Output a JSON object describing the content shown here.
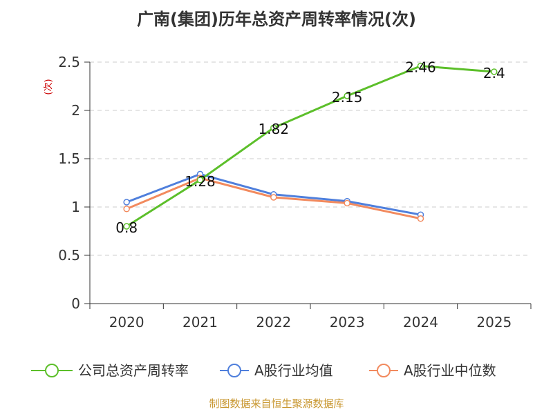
{
  "chart_data": {
    "type": "line",
    "title": "广南(集团)历年总资产周转率情况(次)",
    "ylabel": "(次)",
    "xlabel": "",
    "categories": [
      "2020",
      "2021",
      "2022",
      "2023",
      "2024",
      "2025"
    ],
    "ylim": [
      0,
      2.5
    ],
    "yticks": [
      "0",
      "0.5",
      "1",
      "1.5",
      "2",
      "2.5"
    ],
    "grid": true,
    "legend_position": "bottom",
    "series": [
      {
        "name": "公司总资产周转率",
        "color": "#5cbf2a",
        "values": [
          0.8,
          1.28,
          1.82,
          2.15,
          2.46,
          2.4
        ],
        "labels": [
          "0.8",
          "1.28",
          "1.82",
          "2.15",
          "2.46",
          "2.4"
        ]
      },
      {
        "name": "A股行业均值",
        "color": "#4f7fdc",
        "values": [
          1.05,
          1.34,
          1.13,
          1.06,
          0.92,
          null
        ]
      },
      {
        "name": "A股行业中位数",
        "color": "#f28a5e",
        "values": [
          0.98,
          1.3,
          1.1,
          1.04,
          0.88,
          null
        ]
      }
    ]
  },
  "source": "制图数据来自恒生聚源数据库"
}
